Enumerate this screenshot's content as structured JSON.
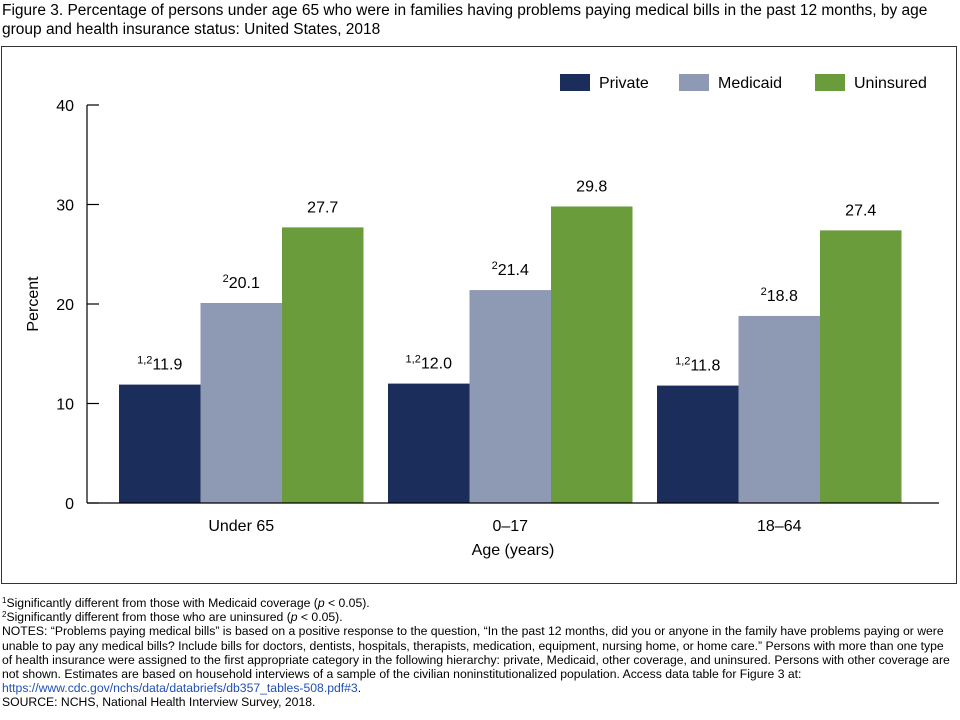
{
  "title": "Figure 3. Percentage of persons under age 65 who were in families having problems paying medical bills in the past 12 months, by age group and health insurance status: United States, 2018",
  "colors": {
    "Private": "#1b2d5b",
    "Medicaid": "#8e9ab3",
    "Uninsured": "#6a9c3c"
  },
  "chart_data": {
    "type": "bar",
    "title": "",
    "xlabel": "Age (years)",
    "ylabel": "Percent",
    "ylim": [
      0,
      40
    ],
    "yticks": [
      0,
      10,
      20,
      30,
      40
    ],
    "grid": false,
    "legend_position": "top-right",
    "categories": [
      "Under 65",
      "0–17",
      "18–64"
    ],
    "series": [
      {
        "name": "Private",
        "values": [
          11.9,
          12.0,
          11.8
        ],
        "label_prefix": [
          "1,2",
          "1,2",
          "1,2"
        ]
      },
      {
        "name": "Medicaid",
        "values": [
          20.1,
          21.4,
          18.8
        ],
        "label_prefix": [
          "2",
          "2",
          "2"
        ]
      },
      {
        "name": "Uninsured",
        "values": [
          27.7,
          29.8,
          27.4
        ],
        "label_prefix": [
          "",
          "",
          ""
        ]
      }
    ]
  },
  "footnotes": {
    "fn1_mark": "1",
    "fn1_a": "Significantly different from those with Medicaid coverage (",
    "fn1_p": "p",
    "fn1_b": " < 0.05).",
    "fn2_mark": "2",
    "fn2_a": "Significantly different from those who are uninsured (",
    "fn2_p": "p",
    "fn2_b": " < 0.05).",
    "notes_text": "NOTES: “Problems paying medical bills” is based on a positive response to the question, “In the past 12 months, did you or anyone in the family have problems paying or were unable to pay any medical bills? Include bills for doctors, dentists, hospitals, therapists, medication, equipment, nursing home, or home care.” Persons with more than one type of health insurance were assigned to the first appropriate category in the following hierarchy: private, Medicaid, other coverage, and uninsured. Persons with other coverage are not shown. Estimates are based on household interviews of a sample of the civilian noninstitutionalized population. Access data table for Figure 3 at: ",
    "notes_link": "https://www.cdc.gov/nchs/data/databriefs/db357_tables-508.pdf#3",
    "notes_end": ".",
    "source": "SOURCE: NCHS, National Health Interview Survey, 2018."
  }
}
